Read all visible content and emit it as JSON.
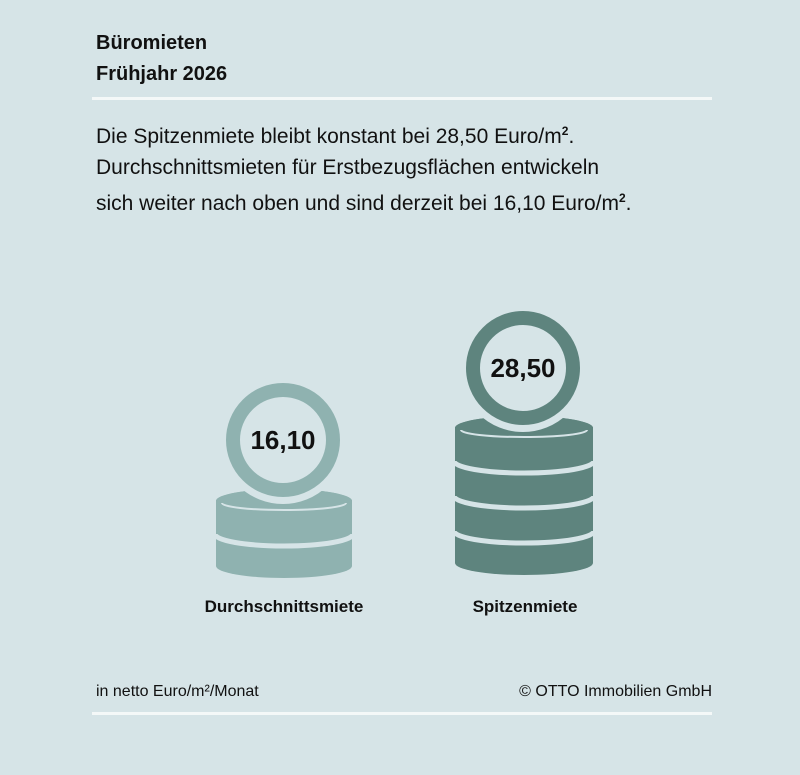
{
  "header": {
    "title": "Büromieten",
    "subtitle": "Frühjahr 2026"
  },
  "description": {
    "line1": "Die Spitzenmiete bleibt konstant bei 28,50 Euro/m",
    "line2": "Durchschnittsmieten für Erstbezugsflächen entwickeln",
    "line3": "sich weiter nach oben und sind derzeit bei 16,10 Euro/m",
    "sup": "2",
    "end": "."
  },
  "chart_data": {
    "type": "pictogram",
    "categories": [
      "Durchschnittsmiete",
      "Spitzenmiete"
    ],
    "values": [
      16.1,
      28.5
    ],
    "value_labels": [
      "16,10",
      "28,50"
    ],
    "stack_layers": [
      2,
      4
    ],
    "colors": [
      "#8fb2b0",
      "#5e847e"
    ],
    "unit": "in netto Euro/m²/Monat"
  },
  "footer": {
    "unit": "in netto Euro/m²/Monat",
    "copyright": "© OTTO Immobilien GmbH"
  },
  "colors": {
    "background": "#d6e4e7",
    "light": "#8fb2b0",
    "dark": "#5e847e",
    "rule": "#f4f8f8"
  }
}
